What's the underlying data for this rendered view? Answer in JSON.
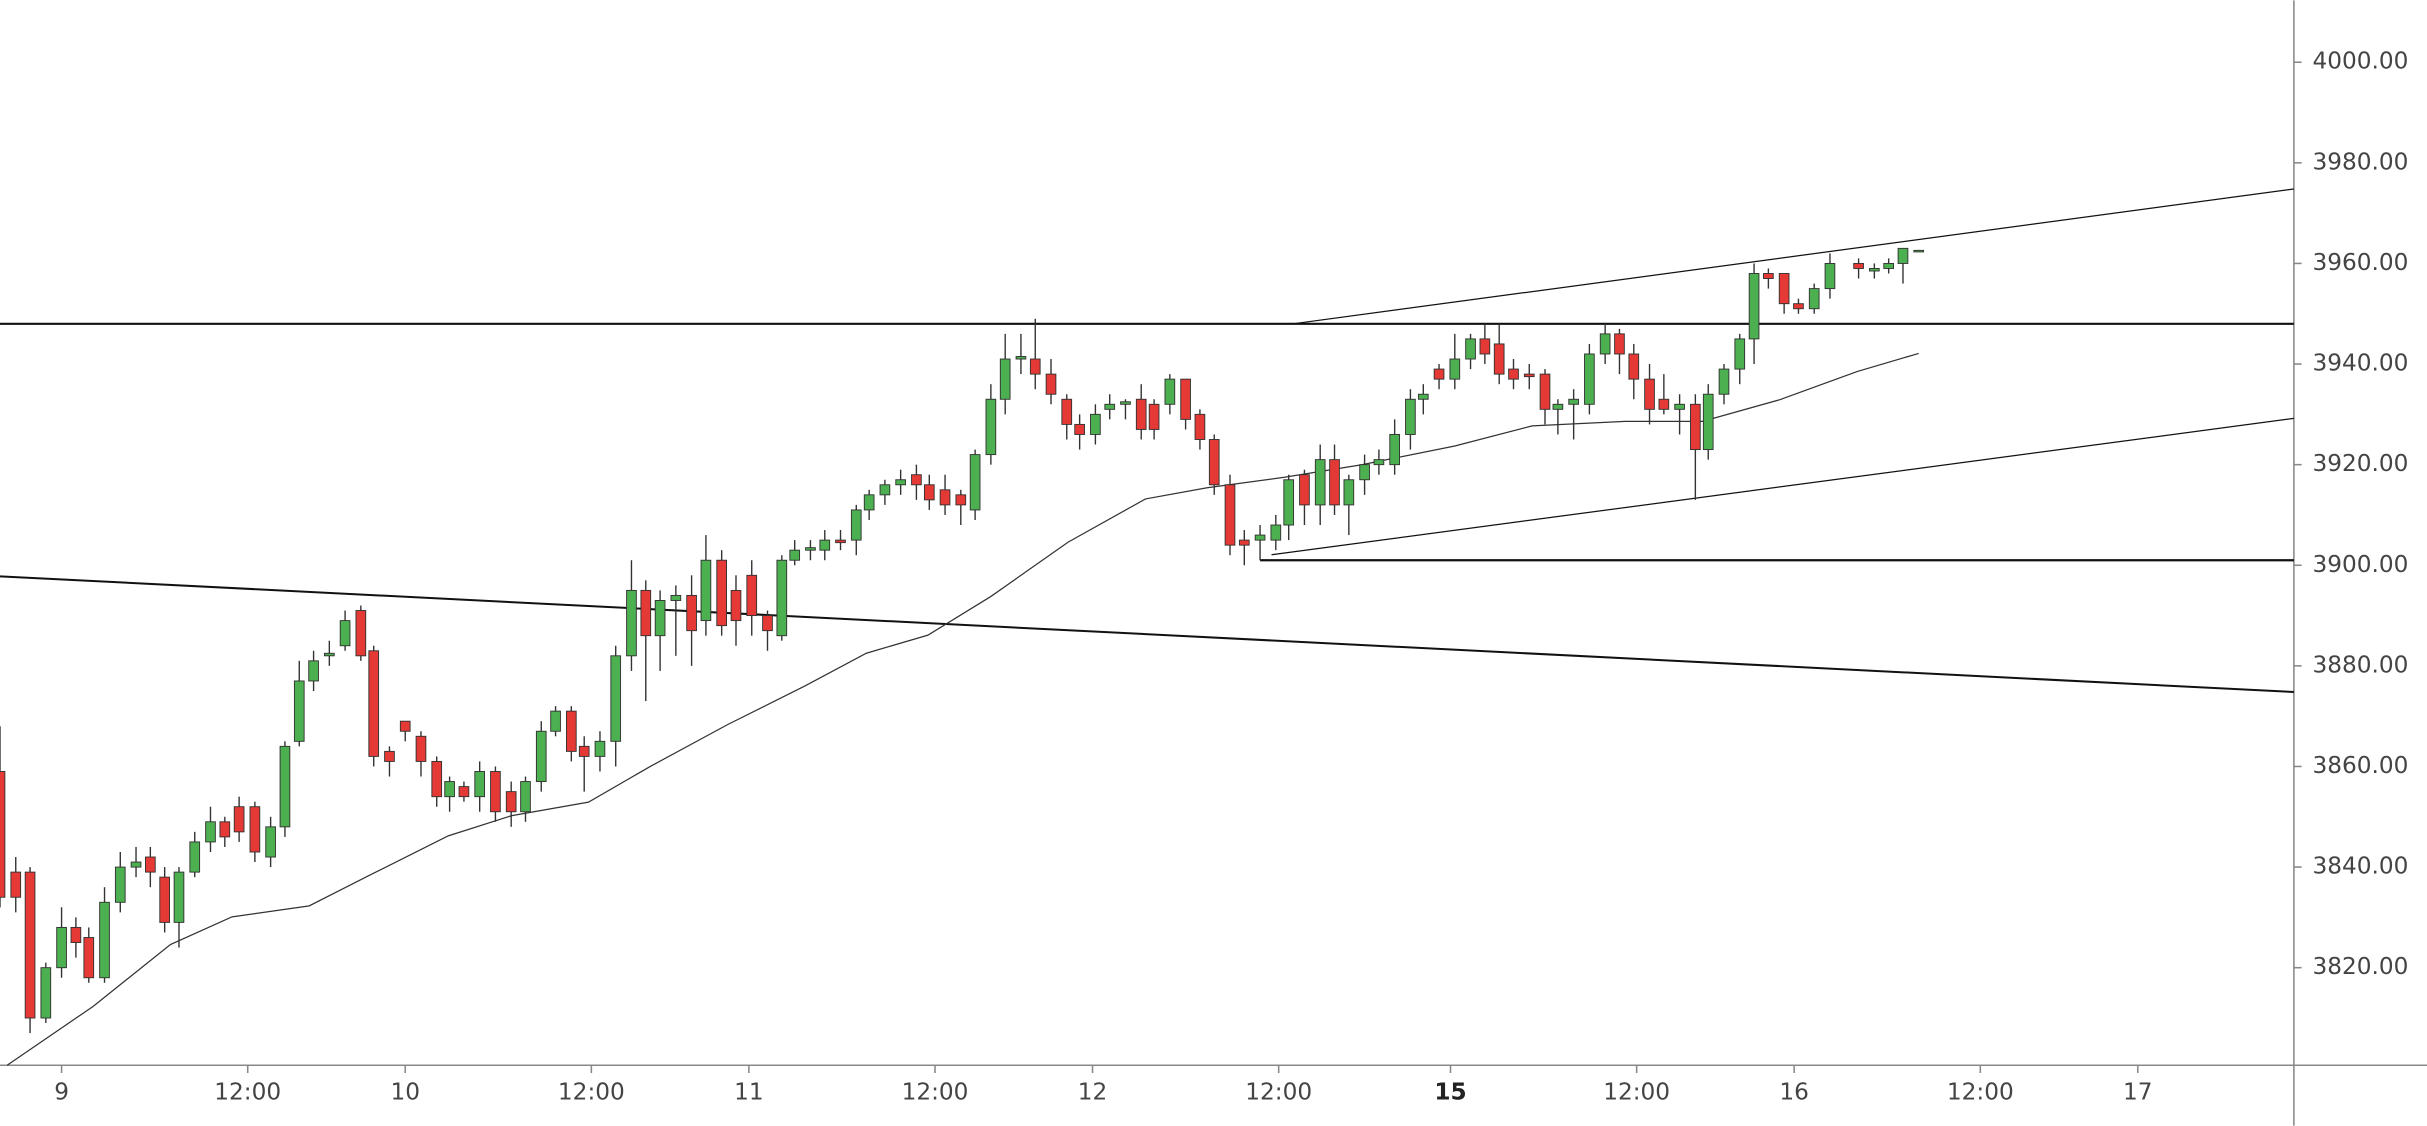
{
  "chart_data": {
    "type": "candlestick",
    "x": [
      -4.3,
      -3.2,
      -2.2,
      -1.1,
      0,
      1,
      1.9,
      3,
      4.1,
      5.2,
      6.2,
      7.2,
      8.2,
      9.3,
      10.4,
      11.4,
      12.4,
      13.5,
      14.6,
      15.6,
      16.6,
      17.6,
      18.7,
      19.8,
      20.9,
      21.8,
      22.9,
      24,
      25.1,
      26.2,
      27.1,
      28.1,
      29.2,
      30.3,
      31.4,
      32.4,
      33.5,
      34.5,
      35.6,
      36.5,
      37.6,
      38.7,
      39.8,
      40.8,
      41.8,
      42.9,
      44,
      45,
      46.1,
      47.1,
      48.2,
      49.3,
      50.3,
      51.2,
      52.3,
      53.3,
      54.4,
      55.5,
      56.4,
      57.5,
      58.6,
      59.7,
      60.6,
      61.7,
      62.8,
      63.8,
      64.9,
      65.9,
      67,
      68,
      69.1,
      70.2,
      71.1,
      72.2,
      73.2,
      74.3,
      75.4,
      76.3,
      77.4,
      78.5,
      79.5,
      80.5,
      81.6,
      82.6,
      83.7,
      84.8,
      85.7,
      86.8,
      87.9,
      88.9,
      89.9,
      91,
      92,
      93.1,
      94.2,
      95.1,
      96.2,
      97.3,
      98.4,
      99.4,
      100.4,
      101.4,
      102.5,
      103.6,
      104.5,
      105.6,
      106.7,
      107.8,
      108.8,
      109.8,
      110.9,
      111.9,
      113,
      114.1,
      115,
      116.1,
      117.2,
      118.2,
      119.2,
      120.3,
      121.3,
      122.4,
      123.5,
      125.5,
      126.6,
      127.6,
      128.6,
      129.7
    ],
    "open": [
      3859,
      3839,
      3839,
      3810,
      3820,
      3828,
      3826,
      3818,
      3833,
      3840,
      3842,
      3838,
      3829,
      3839,
      3845,
      3849,
      3852,
      3852,
      3842,
      3848,
      3865,
      3877,
      3882,
      3884,
      3891,
      3883,
      3863,
      3869,
      3866,
      3861,
      3854,
      3856,
      3854,
      3859,
      3855,
      3851,
      3857,
      3867,
      3871,
      3864,
      3862,
      3865,
      3882,
      3895,
      3886,
      3893,
      3894,
      3889,
      3901,
      3895,
      3898,
      3890,
      3886,
      3901,
      3903,
      3903,
      3905,
      3905,
      3911,
      3914,
      3916,
      3918,
      3916,
      3915,
      3914,
      3911,
      3922,
      3933,
      3941,
      3941,
      3938,
      3933,
      3928,
      3926,
      3931,
      3932,
      3933,
      3932,
      3932,
      3937,
      3930,
      3925,
      3916,
      3905,
      3905,
      3905,
      3908,
      3918,
      3912,
      3921,
      3912,
      3917,
      3920,
      3920,
      3926,
      3933,
      3939,
      3937,
      3941,
      3945,
      3944,
      3939,
      3938,
      3938,
      3931,
      3932,
      3932,
      3942,
      3946,
      3942,
      3937,
      3933,
      3931,
      3932,
      3923,
      3934,
      3939,
      3945,
      3958,
      3958,
      3952,
      3951,
      3955,
      3960,
      3958.5,
      3959,
      3960,
      3962.5
    ],
    "high": [
      3868,
      3842,
      3840,
      3821,
      3832,
      3830,
      3828,
      3836,
      3843,
      3844,
      3844,
      3840,
      3840,
      3847,
      3852,
      3850,
      3854,
      3853,
      3850,
      3865,
      3881,
      3883,
      3885,
      3891,
      3892,
      3884,
      3864,
      3869,
      3867,
      3862,
      3858,
      3857,
      3861,
      3860,
      3857,
      3858,
      3869,
      3872,
      3872,
      3866,
      3867,
      3884,
      3901,
      3897,
      3895,
      3896,
      3898,
      3906,
      3903,
      3898,
      3901,
      3891,
      3902,
      3905,
      3905,
      3907,
      3907,
      3912,
      3915,
      3917,
      3919,
      3920,
      3918,
      3918,
      3915,
      3923,
      3936,
      3946,
      3946,
      3949,
      3941,
      3934,
      3930,
      3932,
      3934,
      3933,
      3936,
      3933,
      3938,
      3937,
      3931,
      3926,
      3918,
      3907,
      3908,
      3910,
      3918,
      3919,
      3924,
      3924,
      3918,
      3922,
      3923,
      3929,
      3935,
      3936,
      3940,
      3946,
      3946,
      3948,
      3948,
      3941,
      3940,
      3939,
      3933,
      3935,
      3944,
      3948,
      3947,
      3944,
      3940,
      3938,
      3934,
      3934,
      3936,
      3940,
      3946,
      3960,
      3959,
      3958,
      3953,
      3956,
      3962,
      3961,
      3960,
      3961,
      3963,
      3962.7
    ],
    "low": [
      3832,
      3831,
      3807,
      3809,
      3818,
      3822,
      3817,
      3817,
      3831,
      3838,
      3836,
      3827,
      3824,
      3838,
      3843,
      3844,
      3845,
      3841,
      3840,
      3846,
      3864,
      3875,
      3880,
      3883,
      3881,
      3860,
      3858,
      3865,
      3858,
      3852,
      3851,
      3853,
      3851,
      3849,
      3848,
      3849,
      3855,
      3866,
      3861,
      3855,
      3859,
      3860,
      3879,
      3873,
      3879,
      3882,
      3880,
      3886,
      3886,
      3884,
      3886,
      3883,
      3885,
      3900,
      3901,
      3901,
      3903,
      3902,
      3909,
      3912,
      3914,
      3913,
      3911,
      3910,
      3908,
      3909,
      3920,
      3930,
      3938,
      3935,
      3932,
      3925,
      3923,
      3924,
      3929,
      3929,
      3925,
      3925,
      3930,
      3927,
      3923,
      3914,
      3902,
      3900,
      3901,
      3903,
      3905,
      3908,
      3908,
      3910,
      3906,
      3914,
      3918,
      3918,
      3923,
      3930,
      3935,
      3935,
      3939,
      3940,
      3936,
      3935,
      3935,
      3928,
      3926,
      3925,
      3930,
      3940,
      3938,
      3933,
      3928,
      3930,
      3926,
      3913,
      3921,
      3932,
      3936,
      3940,
      3955,
      3950,
      3950,
      3950,
      3953,
      3957,
      3957,
      3958,
      3956,
      3962.3
    ],
    "close": [
      3834,
      3834,
      3810,
      3820,
      3828,
      3825,
      3818,
      3833,
      3840,
      3841,
      3839,
      3829,
      3839,
      3845,
      3849,
      3846,
      3847,
      3843,
      3848,
      3864,
      3877,
      3881,
      3882.5,
      3889,
      3882,
      3862,
      3861,
      3867,
      3861,
      3854,
      3857,
      3854,
      3859,
      3851,
      3851,
      3857,
      3867,
      3871,
      3863,
      3862,
      3865,
      3882,
      3895,
      3886,
      3893,
      3894,
      3887,
      3901,
      3888,
      3889,
      3890,
      3887,
      3901,
      3903,
      3903.5,
      3905,
      3904.5,
      3911,
      3914,
      3916,
      3917,
      3916,
      3913,
      3912,
      3912,
      3922,
      3933,
      3941,
      3941.5,
      3938,
      3934,
      3928,
      3926,
      3930,
      3932,
      3932.5,
      3927,
      3927,
      3937,
      3929,
      3925,
      3916,
      3904,
      3904,
      3906,
      3908,
      3917,
      3912,
      3921,
      3912,
      3917,
      3920,
      3921,
      3926,
      3933,
      3934,
      3937,
      3941,
      3945,
      3942,
      3938,
      3937,
      3937.5,
      3931,
      3932,
      3933,
      3942,
      3946,
      3942,
      3937,
      3931,
      3931,
      3932,
      3923,
      3934,
      3939,
      3945,
      3958,
      3957,
      3952,
      3951,
      3955,
      3960,
      3959,
      3959,
      3960,
      3963,
      3962.6
    ],
    "up_color": "#4caf50",
    "down_color": "#e53935",
    "ma": {
      "color": "#333333",
      "x": [
        -3.8,
        2.2,
        7.6,
        11.9,
        17.3,
        21.6,
        27,
        31.4,
        36.8,
        41.1,
        46.5,
        51.9,
        56.2,
        60.5,
        64.9,
        70.3,
        75.7,
        80,
        85.4,
        90.8,
        97.3,
        102.7,
        109.2,
        114.6,
        120,
        125.4,
        129.7
      ],
      "values": [
        3800.6,
        3812.3,
        3824.6,
        3830.1,
        3832.3,
        3838.5,
        3846.2,
        3850.2,
        3852.9,
        3860,
        3868.3,
        3876,
        3882.5,
        3886.1,
        3893.8,
        3904.6,
        3913.2,
        3915.4,
        3917.5,
        3920,
        3923.7,
        3927.7,
        3928.6,
        3928.6,
        3932.9,
        3938.5,
        3942.1
      ]
    },
    "lines": [
      {
        "x": [
          -4.3,
          155.9
        ],
        "y": [
          3948,
          3948
        ]
      },
      {
        "x": [
          83.7,
          155.9
        ],
        "y": [
          3901,
          3901
        ]
      },
      {
        "x": [
          -4.3,
          155.9
        ],
        "y": [
          3897.8,
          3874.8
        ]
      },
      {
        "x": [
          86,
          155.9
        ],
        "y": [
          3948,
          3974.8
        ]
      },
      {
        "x": [
          84.5,
          155.9
        ],
        "y": [
          3902.1,
          3929.2
        ]
      }
    ],
    "xlim": [
      -4.3,
      155.9
    ],
    "ylim": [
      3800.6,
      4012.3
    ],
    "xticks": [
      {
        "value": 0,
        "label": "9"
      },
      {
        "value": 13,
        "label": "12:00"
      },
      {
        "value": 24,
        "label": "10"
      },
      {
        "value": 37,
        "label": "12:00"
      },
      {
        "value": 48,
        "label": "11"
      },
      {
        "value": 61,
        "label": "12:00"
      },
      {
        "value": 72,
        "label": "12"
      },
      {
        "value": 85,
        "label": "12:00"
      },
      {
        "value": 97,
        "label": "15"
      },
      {
        "value": 110,
        "label": "12:00"
      },
      {
        "value": 121,
        "label": "16"
      },
      {
        "value": 134,
        "label": "12:00"
      },
      {
        "value": 145,
        "label": "17"
      }
    ],
    "yticks": [
      {
        "value": 3820,
        "label": "3820.00"
      },
      {
        "value": 3840,
        "label": "3840.00"
      },
      {
        "value": 3860,
        "label": "3860.00"
      },
      {
        "value": 3880,
        "label": "3880.00"
      },
      {
        "value": 3900,
        "label": "3900.00"
      },
      {
        "value": 3920,
        "label": "3920.00"
      },
      {
        "value": 3940,
        "label": "3940.00"
      },
      {
        "value": 3960,
        "label": "3960.00"
      },
      {
        "value": 3980,
        "label": "3980.00"
      },
      {
        "value": 4000,
        "label": "4000.00"
      }
    ]
  }
}
